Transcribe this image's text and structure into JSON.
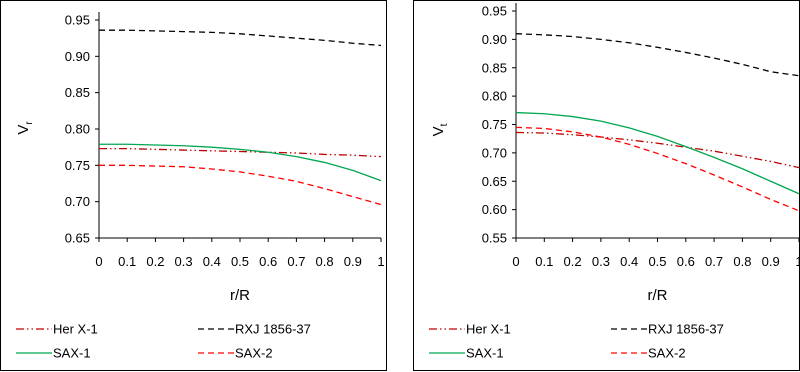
{
  "chart_data": [
    {
      "type": "line",
      "xlabel": "r/R",
      "ylabel": {
        "main": "V",
        "sub": "r"
      },
      "xlim": [
        0,
        1
      ],
      "ylim": [
        0.65,
        0.95
      ],
      "x_ticks": [
        "0",
        "0.1",
        "0.2",
        "0.3",
        "0.4",
        "0.5",
        "0.6",
        "0.7",
        "0.8",
        "0.9",
        "1"
      ],
      "y_ticks": [
        "0.65",
        "0.70",
        "0.75",
        "0.80",
        "0.85",
        "0.90",
        "0.95"
      ],
      "grid": false,
      "legend_position": "bottom",
      "x": [
        0,
        0.1,
        0.2,
        0.3,
        0.4,
        0.5,
        0.6,
        0.7,
        0.8,
        0.9,
        1
      ],
      "series": [
        {
          "name": "Her X-1",
          "color": "#c00000",
          "dash": "dash-dot-dot",
          "values": [
            0.773,
            0.773,
            0.772,
            0.771,
            0.77,
            0.769,
            0.768,
            0.767,
            0.765,
            0.764,
            0.762
          ]
        },
        {
          "name": "RXJ 1856-37",
          "color": "#000000",
          "dash": "dashed",
          "values": [
            0.936,
            0.936,
            0.935,
            0.934,
            0.933,
            0.931,
            0.928,
            0.925,
            0.922,
            0.918,
            0.915
          ]
        },
        {
          "name": "SAX-1",
          "color": "#00a651",
          "dash": "solid",
          "values": [
            0.779,
            0.779,
            0.778,
            0.777,
            0.775,
            0.772,
            0.768,
            0.762,
            0.754,
            0.743,
            0.729
          ]
        },
        {
          "name": "SAX-2",
          "color": "#ff0000",
          "dash": "dashed",
          "values": [
            0.75,
            0.75,
            0.749,
            0.748,
            0.745,
            0.741,
            0.735,
            0.728,
            0.718,
            0.707,
            0.696
          ]
        }
      ]
    },
    {
      "type": "line",
      "xlabel": "r/R",
      "ylabel": {
        "main": "V",
        "sub": "t"
      },
      "xlim": [
        0,
        1
      ],
      "ylim": [
        0.55,
        0.95
      ],
      "x_ticks": [
        "0",
        "0.1",
        "0.2",
        "0.3",
        "0.4",
        "0.5",
        "0.6",
        "0.7",
        "0.8",
        "0.9",
        "1"
      ],
      "y_ticks": [
        "0.55",
        "0.60",
        "0.65",
        "0.70",
        "0.75",
        "0.80",
        "0.85",
        "0.90",
        "0.95"
      ],
      "grid": false,
      "legend_position": "bottom",
      "x": [
        0,
        0.1,
        0.2,
        0.3,
        0.4,
        0.5,
        0.6,
        0.7,
        0.8,
        0.9,
        1
      ],
      "series": [
        {
          "name": "Her X-1",
          "color": "#c00000",
          "dash": "dash-dot-dot",
          "values": [
            0.736,
            0.735,
            0.732,
            0.728,
            0.723,
            0.717,
            0.71,
            0.703,
            0.694,
            0.685,
            0.674
          ]
        },
        {
          "name": "RXJ 1856-37",
          "color": "#000000",
          "dash": "dashed",
          "values": [
            0.91,
            0.908,
            0.905,
            0.9,
            0.894,
            0.886,
            0.877,
            0.867,
            0.856,
            0.843,
            0.836
          ]
        },
        {
          "name": "SAX-1",
          "color": "#00a651",
          "dash": "solid",
          "values": [
            0.771,
            0.769,
            0.764,
            0.756,
            0.744,
            0.729,
            0.711,
            0.692,
            0.672,
            0.65,
            0.628
          ]
        },
        {
          "name": "SAX-2",
          "color": "#ff0000",
          "dash": "dashed",
          "values": [
            0.745,
            0.743,
            0.737,
            0.728,
            0.715,
            0.699,
            0.681,
            0.661,
            0.64,
            0.618,
            0.598
          ]
        }
      ]
    }
  ]
}
